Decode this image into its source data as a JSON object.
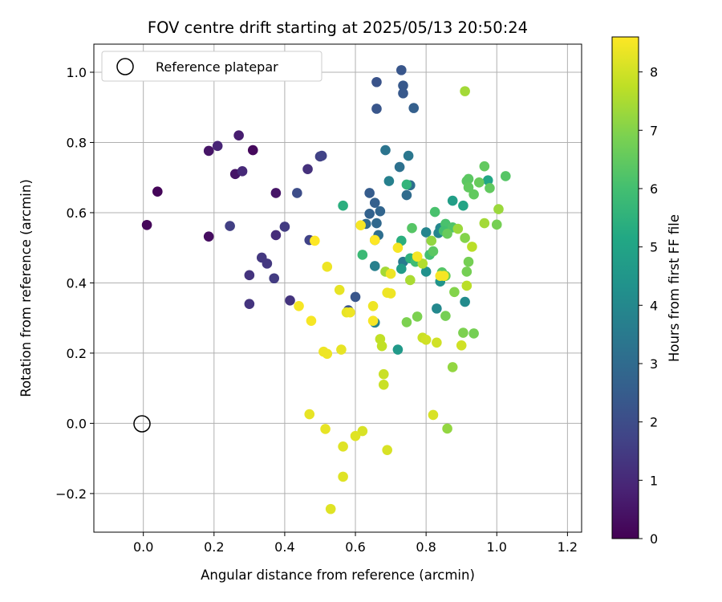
{
  "chart_data": {
    "type": "scatter",
    "title": "FOV centre drift starting at 2025/05/13 20:50:24",
    "xlabel": "Angular distance from reference (arcmin)",
    "ylabel": "Rotation from reference (arcmin)",
    "xlim": [
      -0.14,
      1.24
    ],
    "ylim": [
      -0.31,
      1.08
    ],
    "xticks": [
      0.0,
      0.2,
      0.4,
      0.6,
      0.8,
      1.0,
      1.2
    ],
    "xtick_labels": [
      "0.0",
      "0.2",
      "0.4",
      "0.6",
      "0.8",
      "1.0",
      "1.2"
    ],
    "yticks": [
      -0.2,
      0.0,
      0.2,
      0.4,
      0.6,
      0.8,
      1.0
    ],
    "ytick_labels": [
      "−0.2",
      "0.0",
      "0.2",
      "0.4",
      "0.6",
      "0.8",
      "1.0"
    ],
    "grid": true,
    "legend": {
      "position": "top-left",
      "entries": [
        "Reference platepar"
      ]
    },
    "reference_point": {
      "x": 0.0,
      "y": 0.0,
      "label": "Reference platepar"
    },
    "colorbar": {
      "label": "Hours from first FF file",
      "colormap": "viridis",
      "range": [
        0,
        8.6
      ],
      "ticks": [
        0,
        1,
        2,
        3,
        4,
        5,
        6,
        7,
        8
      ],
      "tick_labels": [
        "0",
        "1",
        "2",
        "3",
        "4",
        "5",
        "6",
        "7",
        "8"
      ]
    },
    "series": [
      {
        "points": [
          [
            0.04,
            0.66,
            0.1
          ],
          [
            0.01,
            0.565,
            0.15
          ],
          [
            0.31,
            0.778,
            0.2
          ],
          [
            0.185,
            0.532,
            0.3
          ],
          [
            0.185,
            0.776,
            0.5
          ],
          [
            0.26,
            0.71,
            0.5
          ],
          [
            0.27,
            0.82,
            0.7
          ],
          [
            0.375,
            0.656,
            0.5
          ],
          [
            0.21,
            0.79,
            0.9
          ],
          [
            0.28,
            0.718,
            1.0
          ],
          [
            0.375,
            0.536,
            1.1
          ],
          [
            0.3,
            0.34,
            1.3
          ],
          [
            0.3,
            0.422,
            1.3
          ],
          [
            0.415,
            0.35,
            1.3
          ],
          [
            0.465,
            0.724,
            1.2
          ],
          [
            0.335,
            0.472,
            1.4
          ],
          [
            0.35,
            0.455,
            1.4
          ],
          [
            0.4,
            0.56,
            1.5
          ],
          [
            0.37,
            0.413,
            1.5
          ],
          [
            0.5,
            0.76,
            1.6
          ],
          [
            0.245,
            0.562,
            1.6
          ],
          [
            0.505,
            0.762,
            1.7
          ],
          [
            0.47,
            0.522,
            1.7
          ],
          [
            0.435,
            0.656,
            2.0
          ],
          [
            0.66,
            0.972,
            2.2
          ],
          [
            0.66,
            0.896,
            2.3
          ],
          [
            0.73,
            1.006,
            2.3
          ],
          [
            0.735,
            0.962,
            2.4
          ],
          [
            0.735,
            0.94,
            2.4
          ],
          [
            0.765,
            0.898,
            2.6
          ],
          [
            0.58,
            0.322,
            2.2
          ],
          [
            0.6,
            0.36,
            2.3
          ],
          [
            0.64,
            0.656,
            2.5
          ],
          [
            0.655,
            0.628,
            2.6
          ],
          [
            0.67,
            0.604,
            2.8
          ],
          [
            0.64,
            0.597,
            2.7
          ],
          [
            0.66,
            0.57,
            2.9
          ],
          [
            0.63,
            0.568,
            3.0
          ],
          [
            0.665,
            0.536,
            3.1
          ],
          [
            0.745,
            0.65,
            3.0
          ],
          [
            0.755,
            0.678,
            3.1
          ],
          [
            0.725,
            0.73,
            3.2
          ],
          [
            0.685,
            0.778,
            3.3
          ],
          [
            0.75,
            0.762,
            3.4
          ],
          [
            0.735,
            0.46,
            3.5
          ],
          [
            0.655,
            0.522,
            3.6
          ],
          [
            0.655,
            0.448,
            3.7
          ],
          [
            0.655,
            0.287,
            3.8
          ],
          [
            0.695,
            0.69,
            3.7
          ],
          [
            0.8,
            0.544,
            3.9
          ],
          [
            0.835,
            0.542,
            3.9
          ],
          [
            0.84,
            0.556,
            4.0
          ],
          [
            0.83,
            0.327,
            4.0
          ],
          [
            0.91,
            0.346,
            4.1
          ],
          [
            0.8,
            0.432,
            4.3
          ],
          [
            0.84,
            0.404,
            4.4
          ],
          [
            0.72,
            0.21,
            4.6
          ],
          [
            0.73,
            0.44,
            4.7
          ],
          [
            0.875,
            0.634,
            4.8
          ],
          [
            0.905,
            0.62,
            5.0
          ],
          [
            0.975,
            0.692,
            5.1
          ],
          [
            0.565,
            0.62,
            5.4
          ],
          [
            0.73,
            0.52,
            5.4
          ],
          [
            0.755,
            0.47,
            5.5
          ],
          [
            0.745,
            0.68,
            5.6
          ],
          [
            0.62,
            0.48,
            5.8
          ],
          [
            0.77,
            0.46,
            5.9
          ],
          [
            0.81,
            0.48,
            6.0
          ],
          [
            0.855,
            0.568,
            6.1
          ],
          [
            0.85,
            0.548,
            6.0
          ],
          [
            0.875,
            0.558,
            6.2
          ],
          [
            0.825,
            0.602,
            6.1
          ],
          [
            0.76,
            0.556,
            6.3
          ],
          [
            0.845,
            0.43,
            6.3
          ],
          [
            0.82,
            0.49,
            6.4
          ],
          [
            0.935,
            0.652,
            6.5
          ],
          [
            0.965,
            0.732,
            6.5
          ],
          [
            0.92,
            0.696,
            6.4
          ],
          [
            0.915,
            0.69,
            6.4
          ],
          [
            0.92,
            0.672,
            6.5
          ],
          [
            0.98,
            0.67,
            6.5
          ],
          [
            1.025,
            0.704,
            6.3
          ],
          [
            0.95,
            0.686,
            6.6
          ],
          [
            1.0,
            0.566,
            6.8
          ],
          [
            0.86,
            0.54,
            6.6
          ],
          [
            0.855,
            0.42,
            6.6
          ],
          [
            0.92,
            0.46,
            6.8
          ],
          [
            0.915,
            0.432,
            6.8
          ],
          [
            0.855,
            0.306,
            6.8
          ],
          [
            0.905,
            0.258,
            6.9
          ],
          [
            0.935,
            0.256,
            6.8
          ],
          [
            0.745,
            0.288,
            6.9
          ],
          [
            0.775,
            0.304,
            6.9
          ],
          [
            0.91,
            0.528,
            7.0
          ],
          [
            0.88,
            0.374,
            7.0
          ],
          [
            0.875,
            0.16,
            7.2
          ],
          [
            0.815,
            0.52,
            7.2
          ],
          [
            0.89,
            0.554,
            7.3
          ],
          [
            1.005,
            0.61,
            7.3
          ],
          [
            0.965,
            0.57,
            7.4
          ],
          [
            0.91,
            0.946,
            7.4
          ],
          [
            0.685,
            0.432,
            7.4
          ],
          [
            0.755,
            0.408,
            7.5
          ],
          [
            0.775,
            0.475,
            7.6
          ],
          [
            0.79,
            0.455,
            7.6
          ],
          [
            0.93,
            0.503,
            7.7
          ],
          [
            0.915,
            0.392,
            7.7
          ],
          [
            0.86,
            -0.015,
            7.2
          ],
          [
            0.67,
            0.24,
            7.8
          ],
          [
            0.675,
            0.22,
            7.8
          ],
          [
            0.68,
            0.14,
            7.9
          ],
          [
            0.68,
            0.11,
            7.9
          ],
          [
            0.79,
            0.244,
            7.9
          ],
          [
            0.8,
            0.238,
            8.0
          ],
          [
            0.83,
            0.23,
            8.0
          ],
          [
            0.9,
            0.222,
            8.0
          ],
          [
            0.82,
            0.024,
            8.1
          ],
          [
            0.69,
            -0.076,
            8.1
          ],
          [
            0.62,
            -0.022,
            8.1
          ],
          [
            0.6,
            -0.036,
            8.2
          ],
          [
            0.565,
            -0.066,
            8.2
          ],
          [
            0.515,
            -0.016,
            8.3
          ],
          [
            0.565,
            -0.152,
            8.2
          ],
          [
            0.53,
            -0.244,
            8.2
          ],
          [
            0.47,
            0.026,
            8.3
          ],
          [
            0.555,
            0.38,
            8.3
          ],
          [
            0.51,
            0.204,
            8.4
          ],
          [
            0.56,
            0.21,
            8.3
          ],
          [
            0.52,
            0.198,
            8.4
          ],
          [
            0.52,
            0.446,
            8.4
          ],
          [
            0.575,
            0.316,
            8.3
          ],
          [
            0.585,
            0.316,
            8.4
          ],
          [
            0.615,
            0.564,
            8.5
          ],
          [
            0.475,
            0.292,
            8.5
          ],
          [
            0.44,
            0.334,
            8.5
          ],
          [
            0.65,
            0.292,
            8.5
          ],
          [
            0.65,
            0.334,
            8.4
          ],
          [
            0.655,
            0.522,
            8.6
          ],
          [
            0.485,
            0.52,
            8.6
          ],
          [
            0.7,
            0.37,
            8.4
          ],
          [
            0.69,
            0.372,
            8.4
          ],
          [
            0.7,
            0.426,
            8.4
          ],
          [
            0.72,
            0.5,
            8.5
          ],
          [
            0.775,
            0.475,
            8.5
          ],
          [
            0.84,
            0.42,
            8.5
          ],
          [
            0.85,
            0.42,
            8.5
          ]
        ]
      }
    ]
  }
}
